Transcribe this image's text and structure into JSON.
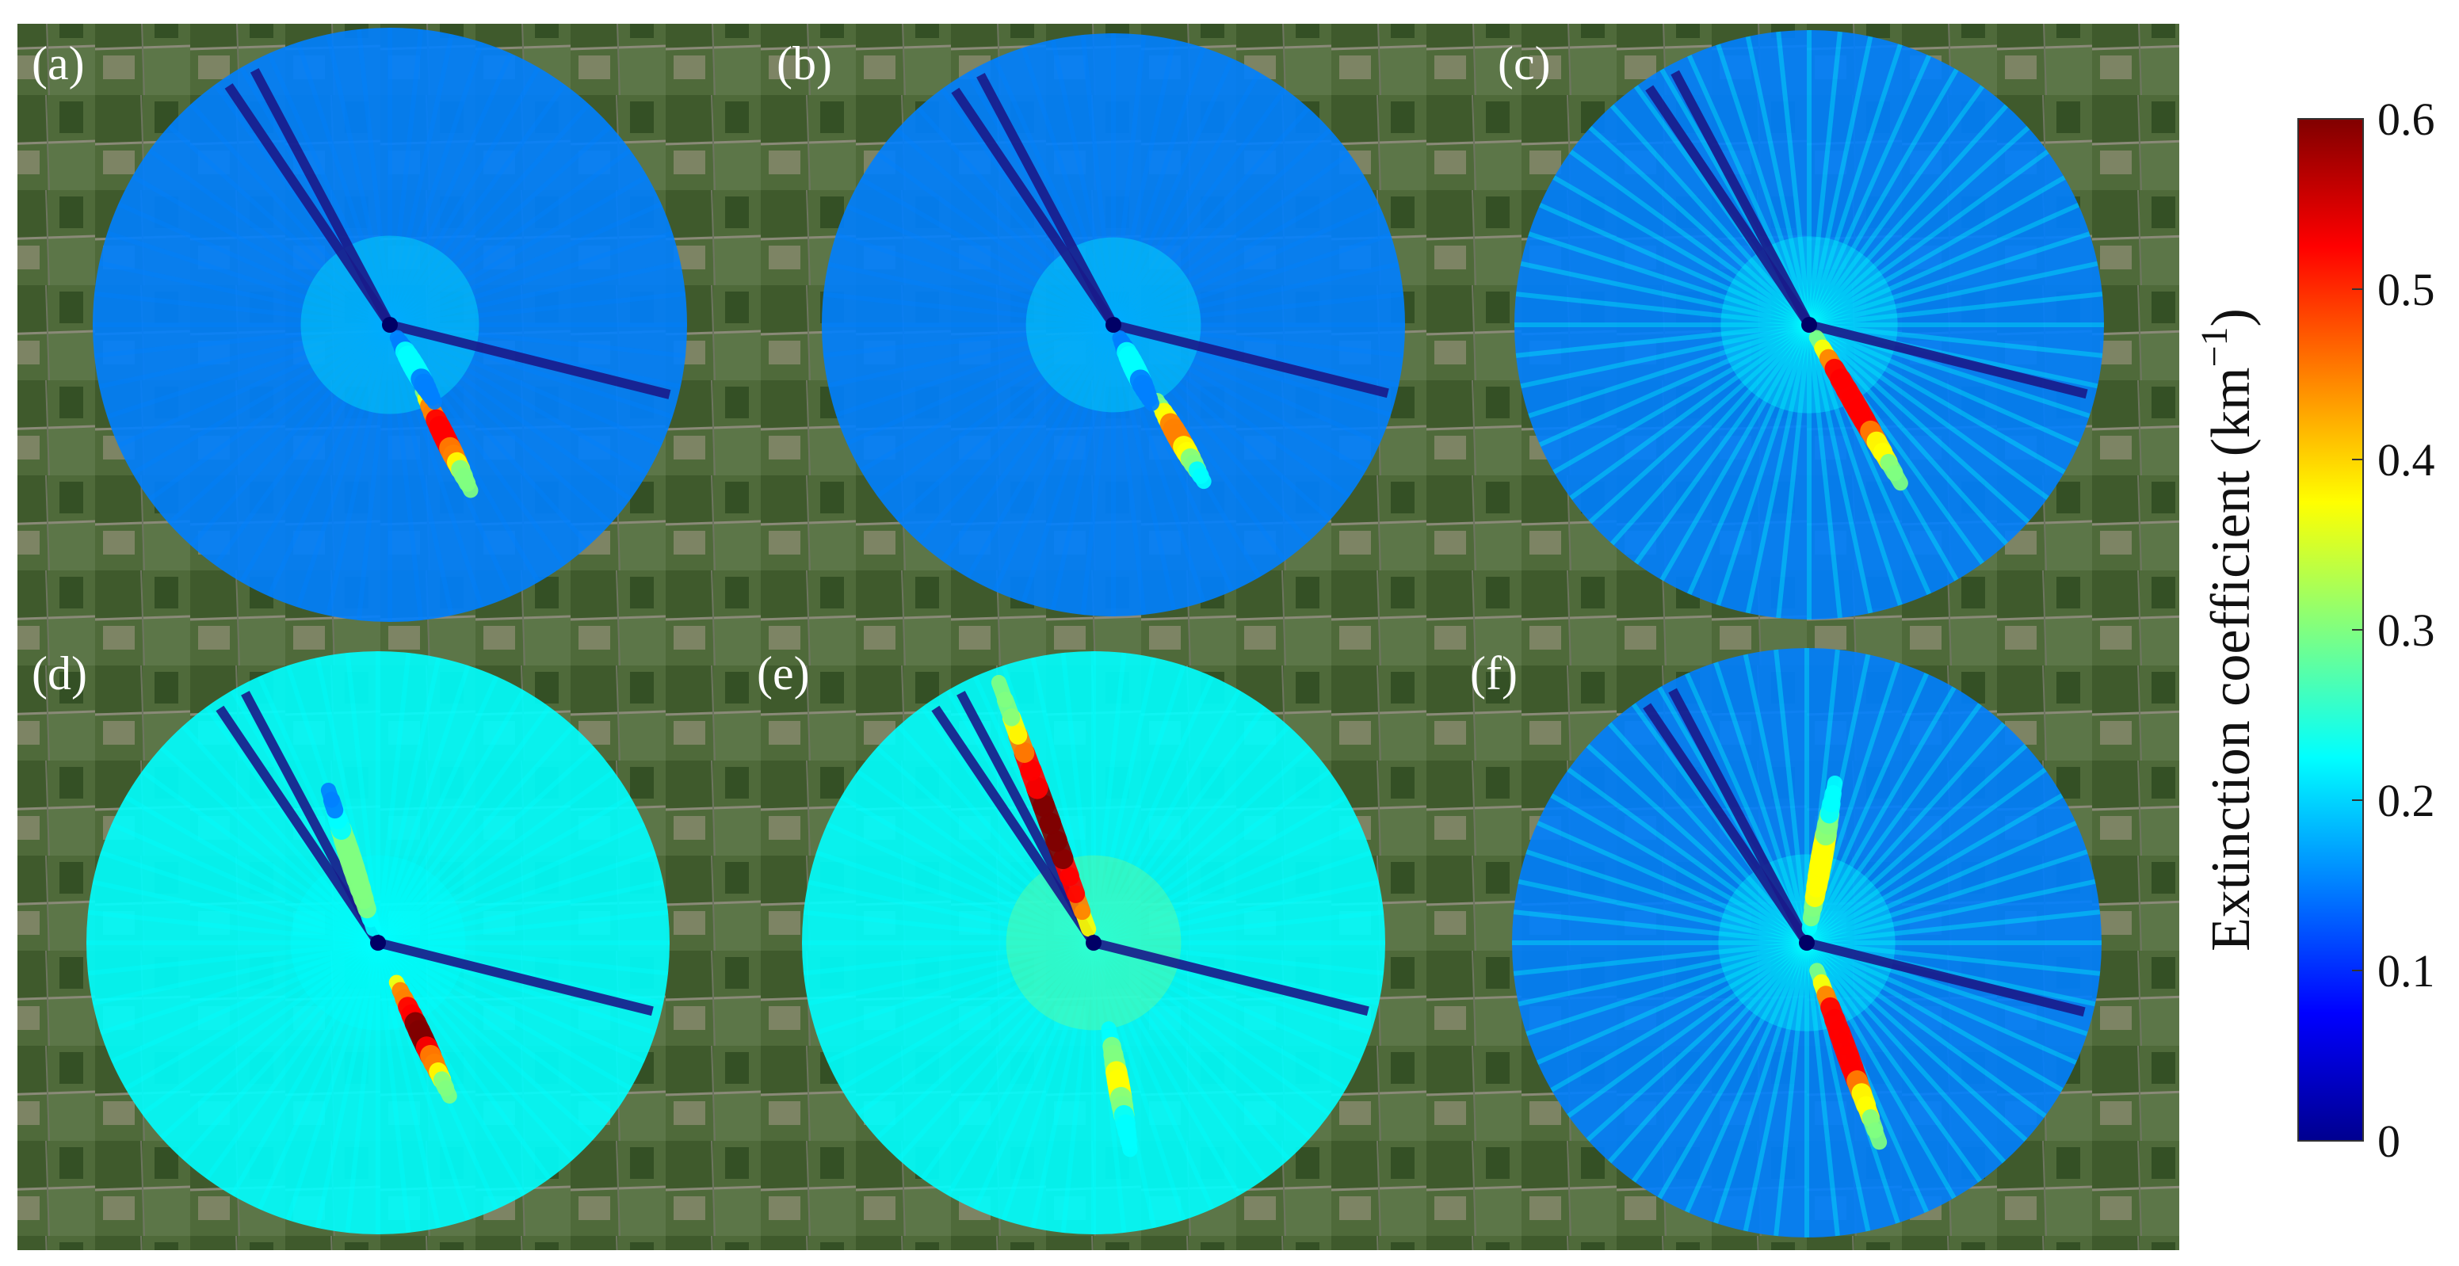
{
  "chart_data": {
    "type": "heatmap",
    "panels": [
      {
        "label": "(a)",
        "plumes": [
          {
            "azimuth_deg": 154,
            "start": 0.25,
            "end": 0.62,
            "peak_value": 0.52
          },
          {
            "azimuth_deg": 150,
            "start": 0.05,
            "end": 0.3,
            "peak_value": 0.22
          }
        ],
        "blocked_sectors_deg": [
          -34,
          -28,
          104
        ],
        "background_value": 0.13
      },
      {
        "label": "(b)",
        "plumes": [
          {
            "azimuth_deg": 150,
            "start": 0.3,
            "end": 0.62,
            "peak_value": 0.45
          },
          {
            "azimuth_deg": 154,
            "start": 0.05,
            "end": 0.3,
            "peak_value": 0.22
          }
        ],
        "blocked_sectors_deg": [
          -34,
          -28,
          104
        ],
        "background_value": 0.13
      },
      {
        "label": "(c)",
        "plumes": [
          {
            "azimuth_deg": 150,
            "start": 0.05,
            "end": 0.62,
            "peak_value": 0.55
          }
        ],
        "blocked_sectors_deg": [
          -34,
          -28,
          104
        ],
        "background_value": 0.16
      },
      {
        "label": "(d)",
        "plumes": [
          {
            "azimuth_deg": 155,
            "start": 0.15,
            "end": 0.58,
            "peak_value": 0.58
          },
          {
            "azimuth_deg": -18,
            "start": 0.05,
            "end": 0.55,
            "peak_value": 0.33
          }
        ],
        "blocked_sectors_deg": [
          -34,
          -28,
          104
        ],
        "background_value": 0.2
      },
      {
        "label": "(e)",
        "plumes": [
          {
            "azimuth_deg": 170,
            "start": 0.3,
            "end": 0.72,
            "peak_value": 0.35
          },
          {
            "azimuth_deg": -20,
            "start": 0.05,
            "end": 0.95,
            "peak_value": 0.6
          }
        ],
        "blocked_sectors_deg": [
          -34,
          -28,
          104
        ],
        "background_value": 0.22
      },
      {
        "label": "(f)",
        "plumes": [
          {
            "azimuth_deg": 160,
            "start": 0.1,
            "end": 0.72,
            "peak_value": 0.55
          },
          {
            "azimuth_deg": 10,
            "start": 0.05,
            "end": 0.55,
            "peak_value": 0.38
          }
        ],
        "blocked_sectors_deg": [
          -34,
          -28,
          104
        ],
        "background_value": 0.18
      }
    ],
    "colorbar": {
      "min": 0,
      "max": 0.6,
      "ticks": [
        "0",
        "0.1",
        "0.2",
        "0.3",
        "0.4",
        "0.5",
        "0.6"
      ],
      "label_text": "Extinction coefficient (km",
      "label_superscript": "−1",
      "label_close": ")",
      "colormap": [
        "#00008f",
        "#0000ff",
        "#0080ff",
        "#00ffff",
        "#80ff80",
        "#ffff00",
        "#ff8000",
        "#ff0000",
        "#800000"
      ]
    }
  }
}
